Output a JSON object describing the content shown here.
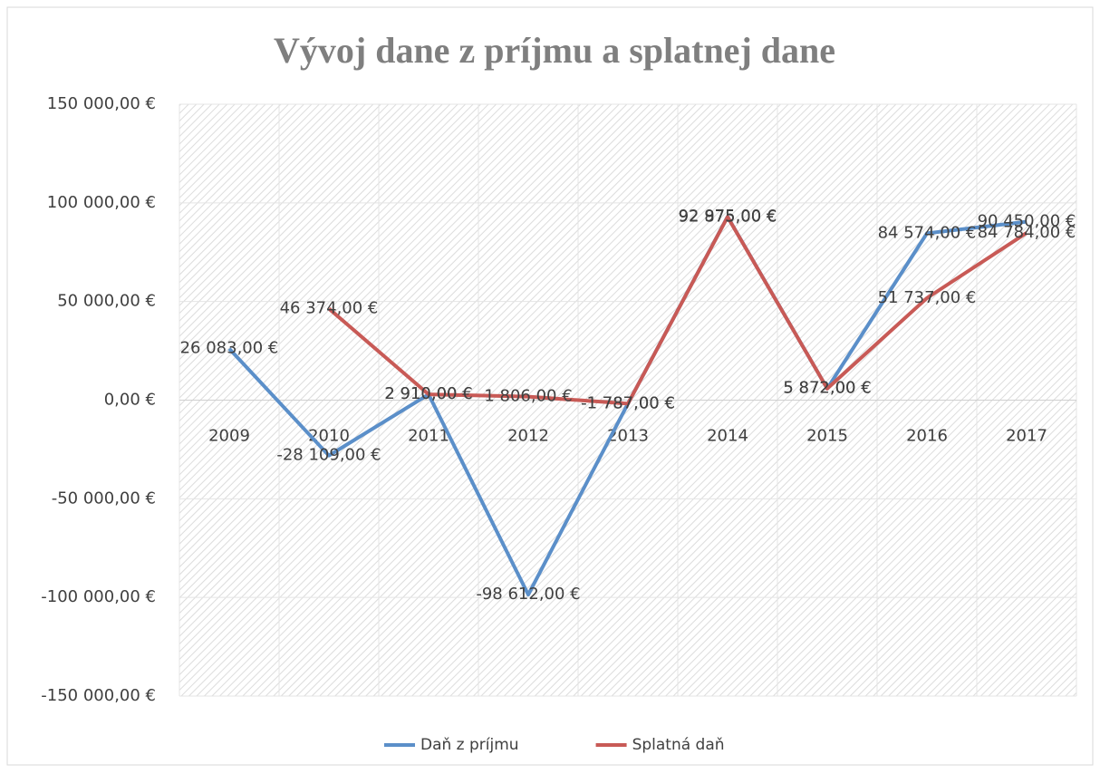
{
  "chart_data": {
    "type": "line",
    "title": "Vývoj dane z príjmu a splatnej dane",
    "categories": [
      "2009",
      "2010",
      "2011",
      "2012",
      "2013",
      "2014",
      "2015",
      "2016",
      "2017"
    ],
    "series": [
      {
        "name": "Daň z príjmu",
        "color": "#5b8fc9",
        "values": [
          26083,
          -28109,
          2910,
          -98612,
          -1787,
          92975,
          5872,
          84574,
          90450
        ],
        "value_labels": [
          "26 083,00 €",
          "-28 109,00 €",
          "2 910,00 €",
          "-98 612,00 €",
          "-1 787,00 €",
          "92 975,00 €",
          "5 872,00 €",
          "84 574,00 €",
          "90 450,00 €"
        ]
      },
      {
        "name": "Splatná daň",
        "color": "#c85a56",
        "values": [
          null,
          46374,
          2910,
          1806,
          -1787,
          92875,
          5872,
          51737,
          84784
        ],
        "value_labels": [
          null,
          "46 374,00 €",
          "2 910,00 €",
          "1 806,00 €",
          "-1 787,00 €",
          "92 875,00 €",
          "5 872,00 €",
          "51 737,00 €",
          "84 784,00 €"
        ]
      }
    ],
    "ylim": [
      -150000,
      150000
    ],
    "yticks": [
      {
        "value": -150000,
        "label": "-150 000,00 €"
      },
      {
        "value": -100000,
        "label": "-100 000,00 €"
      },
      {
        "value": -50000,
        "label": "-50 000,00 €"
      },
      {
        "value": 0,
        "label": "0,00 €"
      },
      {
        "value": 50000,
        "label": "50 000,00 €"
      },
      {
        "value": 100000,
        "label": "100 000,00 €"
      },
      {
        "value": 150000,
        "label": "150 000,00 €"
      }
    ],
    "grid": true,
    "legend": "bottom"
  }
}
